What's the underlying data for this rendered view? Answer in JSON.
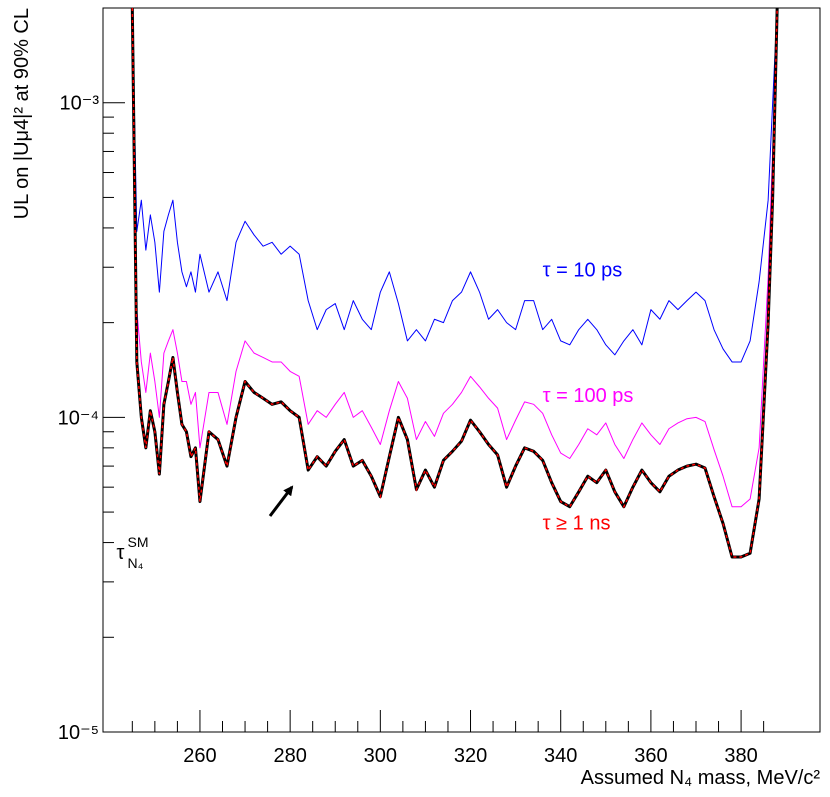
{
  "chart_data": {
    "type": "line",
    "xlabel": "Assumed N₄ mass, MeV/c²",
    "ylabel": "UL on |Uμ4|² at 90% CL",
    "xlim": [
      238.5,
      397.5
    ],
    "ylim": [
      1e-05,
      0.002
    ],
    "log_y": true,
    "xticks": [
      260,
      280,
      300,
      320,
      340,
      360,
      380
    ],
    "xminor": [
      245,
      250,
      255,
      265,
      270,
      275,
      285,
      290,
      295,
      305,
      310,
      315,
      325,
      330,
      335,
      345,
      350,
      355,
      365,
      370,
      375,
      385
    ],
    "yticks": [
      {
        "value": 1e-05,
        "label": "10⁻⁵"
      },
      {
        "value": 0.0001,
        "label": "10⁻⁴"
      },
      {
        "value": 0.001,
        "label": "10⁻³"
      }
    ],
    "yminor": [
      2e-05,
      3e-05,
      4e-05,
      5e-05,
      6e-05,
      7e-05,
      8e-05,
      9e-05,
      0.0002,
      0.0003,
      0.0004,
      0.0005,
      0.0006,
      0.0007,
      0.0008,
      0.0009
    ],
    "x": [
      245,
      246,
      247,
      248,
      249,
      250,
      251,
      252,
      253,
      254,
      255,
      256,
      257,
      258,
      259,
      260,
      262,
      264,
      266,
      268,
      270,
      272,
      274,
      276,
      278,
      280,
      282,
      284,
      286,
      288,
      290,
      292,
      294,
      296,
      298,
      300,
      302,
      304,
      306,
      308,
      310,
      312,
      314,
      316,
      318,
      320,
      322,
      324,
      326,
      328,
      330,
      332,
      334,
      336,
      338,
      340,
      342,
      344,
      346,
      348,
      350,
      352,
      354,
      356,
      358,
      360,
      362,
      364,
      366,
      368,
      370,
      372,
      374,
      376,
      378,
      380,
      382,
      384,
      386,
      387,
      388
    ],
    "series": [
      {
        "name": "τ = 10 ps",
        "color": "#0000ff",
        "values": [
          0.002,
          0.00039,
          0.00049,
          0.00034,
          0.00044,
          0.00036,
          0.00025,
          0.00039,
          0.00044,
          0.00049,
          0.00036,
          0.00029,
          0.00026,
          0.00029,
          0.00025,
          0.00033,
          0.00025,
          0.00029,
          0.000235,
          0.00036,
          0.00042,
          0.00038,
          0.00035,
          0.00036,
          0.00033,
          0.00035,
          0.00033,
          0.000235,
          0.00019,
          0.00022,
          0.00023,
          0.00019,
          0.000235,
          0.000205,
          0.00019,
          0.00025,
          0.00029,
          0.00023,
          0.000175,
          0.00019,
          0.000175,
          0.000205,
          0.0002,
          0.000235,
          0.00025,
          0.00029,
          0.00025,
          0.000205,
          0.00022,
          0.0002,
          0.00019,
          0.000235,
          0.000235,
          0.00019,
          0.000205,
          0.000175,
          0.00017,
          0.00019,
          0.000205,
          0.00019,
          0.00017,
          0.000158,
          0.000175,
          0.00019,
          0.00017,
          0.00022,
          0.000205,
          0.000235,
          0.00022,
          0.000235,
          0.00025,
          0.000235,
          0.00019,
          0.000165,
          0.00015,
          0.00015,
          0.000175,
          0.00027,
          0.00049,
          0.001,
          0.002
        ],
        "label_x": 336,
        "label_y": 0.00028
      },
      {
        "name": "τ = 100 ps",
        "color": "#ff00ff",
        "values": [
          0.002,
          0.00022,
          0.00015,
          0.00012,
          0.00016,
          0.00013,
          0.0001,
          0.00016,
          0.000175,
          0.00019,
          0.00016,
          0.00013,
          0.00013,
          0.00011,
          0.00012,
          8e-05,
          0.00012,
          0.00012,
          9.5e-05,
          0.00014,
          0.000175,
          0.00016,
          0.000155,
          0.00015,
          0.00015,
          0.00014,
          0.000135,
          9.5e-05,
          0.000105,
          0.0001,
          0.00011,
          0.00012,
          0.0001,
          0.000105,
          9.3e-05,
          8.2e-05,
          0.000105,
          0.00013,
          0.000115,
          8.5e-05,
          9.7e-05,
          8.7e-05,
          0.000103,
          0.00011,
          0.00012,
          0.000135,
          0.000125,
          0.000115,
          0.000107,
          8.5e-05,
          9.8e-05,
          0.000112,
          0.00011,
          0.000103,
          8.8e-05,
          7.7e-05,
          7.4e-05,
          8.2e-05,
          9.2e-05,
          8.8e-05,
          9.6e-05,
          8.2e-05,
          7.4e-05,
          8.5e-05,
          9.6e-05,
          8.8e-05,
          8.2e-05,
          9.2e-05,
          9.6e-05,
          9.9e-05,
          0.0001,
          9.7e-05,
          7.9e-05,
          6.5e-05,
          5.2e-05,
          5.2e-05,
          5.5e-05,
          8e-05,
          0.00028,
          0.0007,
          0.002
        ],
        "label_x": 336,
        "label_y": 0.000112
      },
      {
        "name": "τ ≥ 1 ns",
        "color": "#000000",
        "dash_color": "#ff0000",
        "values": [
          0.002,
          0.00015,
          0.0001,
          8e-05,
          0.000105,
          9e-05,
          6.6e-05,
          0.00011,
          0.00013,
          0.000155,
          0.00012,
          9.5e-05,
          9e-05,
          7.5e-05,
          8e-05,
          5.4e-05,
          9e-05,
          8.5e-05,
          7e-05,
          0.0001,
          0.00013,
          0.00012,
          0.000115,
          0.00011,
          0.000112,
          0.000105,
          0.0001,
          6.8e-05,
          7.5e-05,
          7e-05,
          7.8e-05,
          8.5e-05,
          7e-05,
          7.3e-05,
          6.5e-05,
          5.6e-05,
          7.5e-05,
          0.0001,
          8.5e-05,
          5.9e-05,
          6.8e-05,
          6e-05,
          7.3e-05,
          7.8e-05,
          8.4e-05,
          9.8e-05,
          9e-05,
          8.2e-05,
          7.6e-05,
          6e-05,
          7e-05,
          8e-05,
          7.8e-05,
          7.3e-05,
          6.2e-05,
          5.4e-05,
          5.2e-05,
          5.8e-05,
          6.5e-05,
          6.2e-05,
          6.8e-05,
          5.8e-05,
          5.2e-05,
          6e-05,
          6.8e-05,
          6.2e-05,
          5.8e-05,
          6.5e-05,
          6.8e-05,
          7e-05,
          7.1e-05,
          6.9e-05,
          5.6e-05,
          4.6e-05,
          3.6e-05,
          3.6e-05,
          3.7e-05,
          5.5e-05,
          0.0002,
          0.0005,
          0.002
        ],
        "label_x": 336,
        "label_y": 4.4e-05
      }
    ],
    "annotation": {
      "text": "τ",
      "sup": "SM",
      "sub": "N₄",
      "x": 241.5,
      "y": 3.55e-05
    }
  }
}
